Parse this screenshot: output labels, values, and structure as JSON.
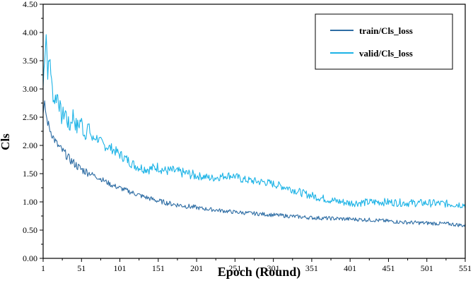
{
  "chart_data": {
    "type": "line",
    "xlabel": "Epoch  (Round)",
    "ylabel": "Cls",
    "xlim": [
      1,
      551
    ],
    "ylim": [
      0,
      4.5
    ],
    "x_ticks": [
      "1",
      "51",
      "101",
      "151",
      "201",
      "251",
      "301",
      "351",
      "401",
      "451",
      "501",
      "551"
    ],
    "y_ticks": [
      "0.00",
      "0.50",
      "1.00",
      "1.50",
      "2.00",
      "2.50",
      "3.00",
      "3.50",
      "4.00",
      "4.50"
    ],
    "legend_position": "top-right",
    "series": [
      {
        "name": "train/Cls_loss",
        "color": "#2e6da4",
        "x": [
          1,
          3,
          6,
          10,
          15,
          20,
          25,
          30,
          35,
          40,
          45,
          50,
          60,
          70,
          80,
          90,
          100,
          110,
          120,
          130,
          140,
          150,
          170,
          190,
          210,
          230,
          250,
          270,
          290,
          310,
          330,
          350,
          370,
          390,
          410,
          430,
          450,
          470,
          490,
          510,
          530,
          551
        ],
        "values": [
          2.55,
          2.72,
          2.45,
          2.28,
          2.12,
          2.0,
          1.92,
          1.85,
          1.76,
          1.7,
          1.64,
          1.58,
          1.52,
          1.45,
          1.38,
          1.3,
          1.25,
          1.2,
          1.15,
          1.1,
          1.06,
          1.02,
          0.96,
          0.92,
          0.88,
          0.85,
          0.82,
          0.8,
          0.78,
          0.76,
          0.74,
          0.72,
          0.71,
          0.7,
          0.69,
          0.68,
          0.66,
          0.64,
          0.63,
          0.62,
          0.61,
          0.58
        ]
      },
      {
        "name": "valid/Cls_loss",
        "color": "#1cb3e6",
        "x": [
          1,
          3,
          5,
          7,
          10,
          12,
          15,
          20,
          25,
          30,
          35,
          40,
          45,
          50,
          55,
          60,
          65,
          70,
          80,
          90,
          100,
          110,
          120,
          130,
          140,
          150,
          160,
          170,
          180,
          190,
          200,
          210,
          220,
          230,
          240,
          250,
          260,
          270,
          280,
          290,
          300,
          320,
          340,
          360,
          380,
          400,
          420,
          440,
          460,
          480,
          500,
          520,
          540,
          551
        ],
        "values": [
          3.05,
          3.6,
          3.98,
          3.3,
          3.55,
          3.1,
          2.8,
          2.9,
          2.5,
          2.6,
          2.3,
          2.55,
          2.3,
          2.45,
          2.2,
          2.35,
          2.1,
          2.15,
          2.0,
          1.95,
          1.85,
          1.75,
          1.65,
          1.6,
          1.58,
          1.62,
          1.55,
          1.55,
          1.52,
          1.5,
          1.46,
          1.45,
          1.42,
          1.44,
          1.47,
          1.46,
          1.4,
          1.38,
          1.36,
          1.35,
          1.32,
          1.25,
          1.15,
          1.08,
          1.02,
          0.98,
          0.99,
          1.0,
          0.99,
          0.98,
          0.98,
          0.97,
          0.96,
          0.95
        ]
      }
    ]
  }
}
